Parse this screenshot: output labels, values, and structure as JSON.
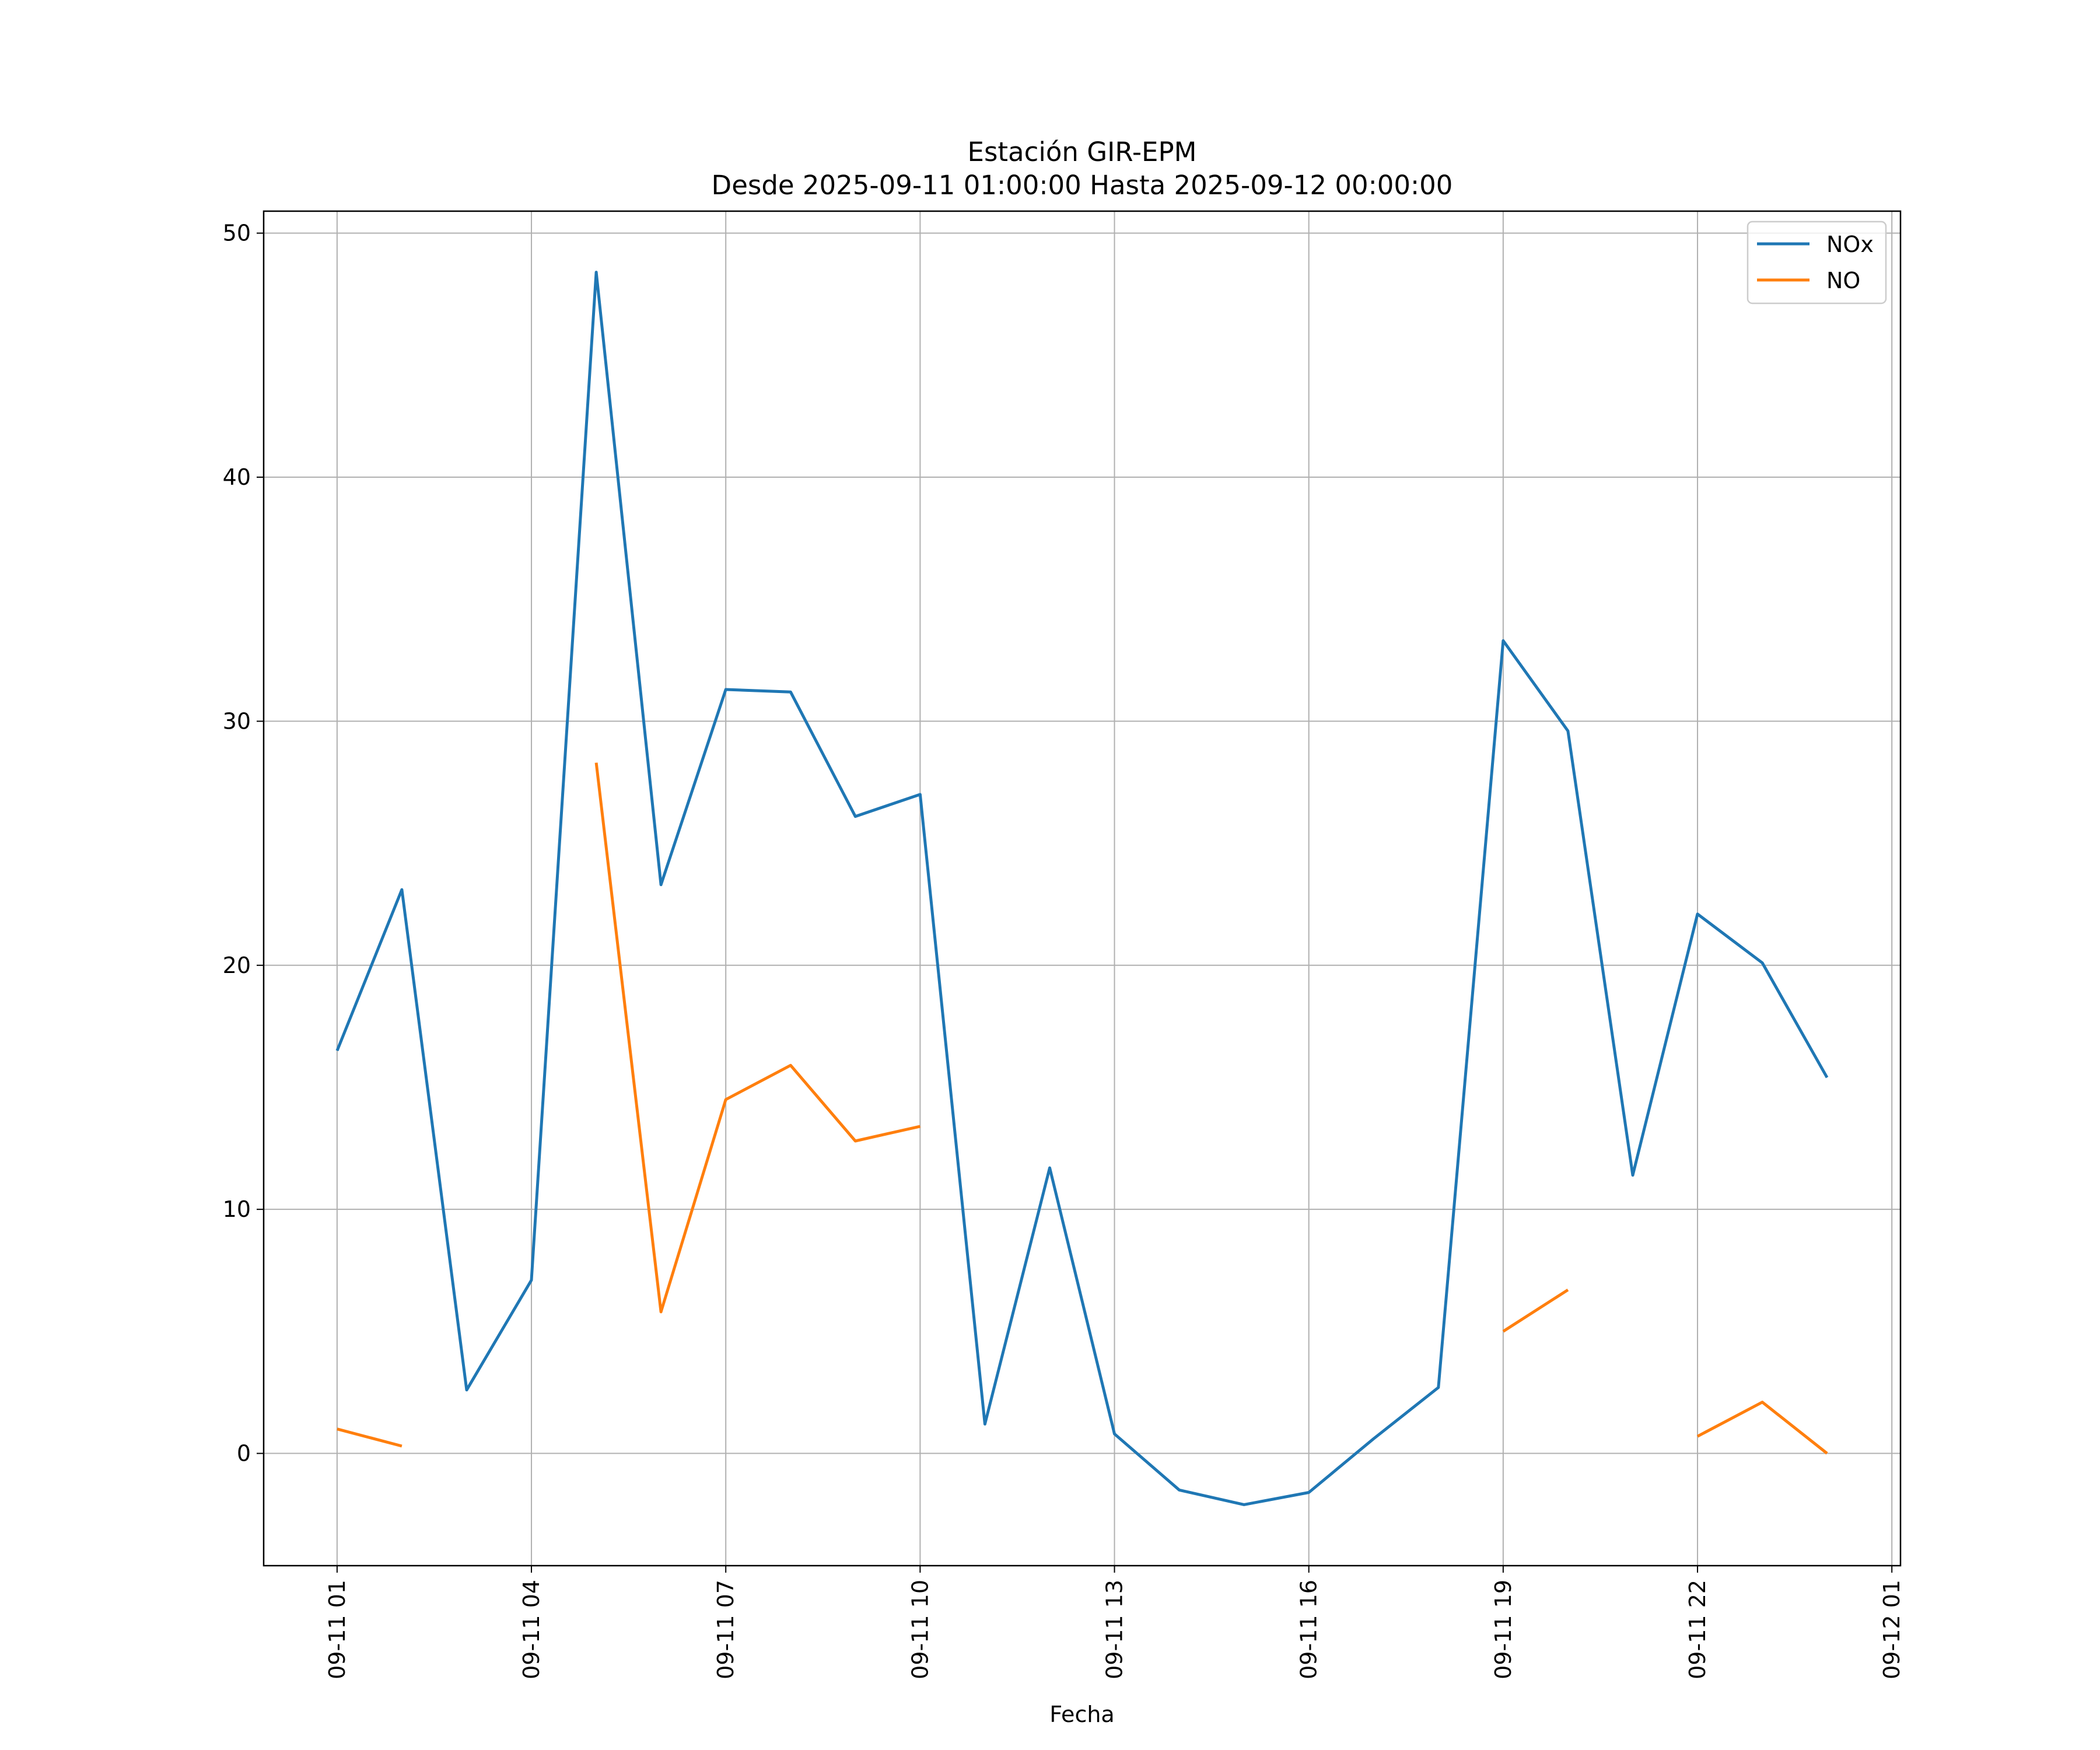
{
  "chart_data": {
    "type": "line",
    "title": "Estación GIR-EPM",
    "subtitle": "Desde 2025-09-11 01:00:00 Hasta 2025-09-12 00:00:00",
    "xlabel": "Fecha",
    "ylabel": "",
    "xlim": [
      "2025-09-10 23:52",
      "2025-09-12 01:08"
    ],
    "ylim": [
      -4.6,
      50.9
    ],
    "x_ticks": [
      {
        "label": "09-11 01",
        "value": "2025-09-11 01:00"
      },
      {
        "label": "09-11 04",
        "value": "2025-09-11 04:00"
      },
      {
        "label": "09-11 07",
        "value": "2025-09-11 07:00"
      },
      {
        "label": "09-11 10",
        "value": "2025-09-11 10:00"
      },
      {
        "label": "09-11 13",
        "value": "2025-09-11 13:00"
      },
      {
        "label": "09-11 16",
        "value": "2025-09-11 16:00"
      },
      {
        "label": "09-11 19",
        "value": "2025-09-11 19:00"
      },
      {
        "label": "09-11 22",
        "value": "2025-09-11 22:00"
      },
      {
        "label": "09-12 01",
        "value": "2025-09-12 01:00"
      }
    ],
    "y_ticks": [
      0,
      10,
      20,
      30,
      40,
      50
    ],
    "grid": true,
    "legend_position": "top-right",
    "x": [
      "2025-09-11 01:00",
      "2025-09-11 02:00",
      "2025-09-11 03:00",
      "2025-09-11 04:00",
      "2025-09-11 05:00",
      "2025-09-11 06:00",
      "2025-09-11 07:00",
      "2025-09-11 08:00",
      "2025-09-11 09:00",
      "2025-09-11 10:00",
      "2025-09-11 11:00",
      "2025-09-11 12:00",
      "2025-09-11 13:00",
      "2025-09-11 14:00",
      "2025-09-11 15:00",
      "2025-09-11 16:00",
      "2025-09-11 17:00",
      "2025-09-11 18:00",
      "2025-09-11 19:00",
      "2025-09-11 20:00",
      "2025-09-11 21:00",
      "2025-09-11 22:00",
      "2025-09-11 23:00",
      "2025-09-12 00:00"
    ],
    "series": [
      {
        "name": "NOx",
        "color": "#1f77b4",
        "values": [
          16.5,
          23.1,
          2.6,
          7.1,
          48.4,
          23.3,
          31.3,
          31.2,
          26.1,
          27.0,
          1.2,
          11.7,
          0.8,
          -1.5,
          -2.1,
          -1.6,
          0.6,
          2.7,
          33.3,
          29.6,
          11.4,
          22.1,
          20.1,
          15.4
        ]
      },
      {
        "name": "NO",
        "color": "#ff7f0e",
        "values": [
          1.0,
          0.3,
          null,
          null,
          28.3,
          5.8,
          14.5,
          15.9,
          12.8,
          13.4,
          null,
          null,
          null,
          null,
          null,
          null,
          null,
          null,
          5.0,
          6.7,
          null,
          0.7,
          2.1,
          0.0
        ]
      }
    ]
  }
}
